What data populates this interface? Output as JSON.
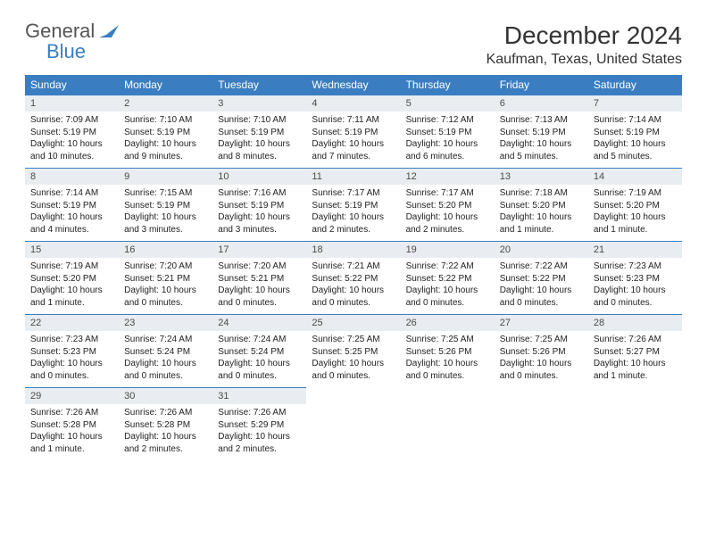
{
  "brand": {
    "general": "General",
    "blue": "Blue"
  },
  "title": "December 2024",
  "location": "Kaufman, Texas, United States",
  "colors": {
    "header_bg": "#3a7ec1",
    "daynum_bg": "#e9edf1",
    "row_divider": "#3a7ec1",
    "text": "#222222",
    "logo_blue": "#3a7ec1",
    "logo_gray": "#555555"
  },
  "fonts": {
    "base": "Arial",
    "title_size": 28,
    "location_size": 16,
    "header_size": 12,
    "daynum_size": 11,
    "body_size": 10
  },
  "weekdays": [
    "Sunday",
    "Monday",
    "Tuesday",
    "Wednesday",
    "Thursday",
    "Friday",
    "Saturday"
  ],
  "days": [
    {
      "n": "1",
      "sr": "Sunrise: 7:09 AM",
      "ss": "Sunset: 5:19 PM",
      "dl1": "Daylight: 10 hours",
      "dl2": "and 10 minutes."
    },
    {
      "n": "2",
      "sr": "Sunrise: 7:10 AM",
      "ss": "Sunset: 5:19 PM",
      "dl1": "Daylight: 10 hours",
      "dl2": "and 9 minutes."
    },
    {
      "n": "3",
      "sr": "Sunrise: 7:10 AM",
      "ss": "Sunset: 5:19 PM",
      "dl1": "Daylight: 10 hours",
      "dl2": "and 8 minutes."
    },
    {
      "n": "4",
      "sr": "Sunrise: 7:11 AM",
      "ss": "Sunset: 5:19 PM",
      "dl1": "Daylight: 10 hours",
      "dl2": "and 7 minutes."
    },
    {
      "n": "5",
      "sr": "Sunrise: 7:12 AM",
      "ss": "Sunset: 5:19 PM",
      "dl1": "Daylight: 10 hours",
      "dl2": "and 6 minutes."
    },
    {
      "n": "6",
      "sr": "Sunrise: 7:13 AM",
      "ss": "Sunset: 5:19 PM",
      "dl1": "Daylight: 10 hours",
      "dl2": "and 5 minutes."
    },
    {
      "n": "7",
      "sr": "Sunrise: 7:14 AM",
      "ss": "Sunset: 5:19 PM",
      "dl1": "Daylight: 10 hours",
      "dl2": "and 5 minutes."
    },
    {
      "n": "8",
      "sr": "Sunrise: 7:14 AM",
      "ss": "Sunset: 5:19 PM",
      "dl1": "Daylight: 10 hours",
      "dl2": "and 4 minutes."
    },
    {
      "n": "9",
      "sr": "Sunrise: 7:15 AM",
      "ss": "Sunset: 5:19 PM",
      "dl1": "Daylight: 10 hours",
      "dl2": "and 3 minutes."
    },
    {
      "n": "10",
      "sr": "Sunrise: 7:16 AM",
      "ss": "Sunset: 5:19 PM",
      "dl1": "Daylight: 10 hours",
      "dl2": "and 3 minutes."
    },
    {
      "n": "11",
      "sr": "Sunrise: 7:17 AM",
      "ss": "Sunset: 5:19 PM",
      "dl1": "Daylight: 10 hours",
      "dl2": "and 2 minutes."
    },
    {
      "n": "12",
      "sr": "Sunrise: 7:17 AM",
      "ss": "Sunset: 5:20 PM",
      "dl1": "Daylight: 10 hours",
      "dl2": "and 2 minutes."
    },
    {
      "n": "13",
      "sr": "Sunrise: 7:18 AM",
      "ss": "Sunset: 5:20 PM",
      "dl1": "Daylight: 10 hours",
      "dl2": "and 1 minute."
    },
    {
      "n": "14",
      "sr": "Sunrise: 7:19 AM",
      "ss": "Sunset: 5:20 PM",
      "dl1": "Daylight: 10 hours",
      "dl2": "and 1 minute."
    },
    {
      "n": "15",
      "sr": "Sunrise: 7:19 AM",
      "ss": "Sunset: 5:20 PM",
      "dl1": "Daylight: 10 hours",
      "dl2": "and 1 minute."
    },
    {
      "n": "16",
      "sr": "Sunrise: 7:20 AM",
      "ss": "Sunset: 5:21 PM",
      "dl1": "Daylight: 10 hours",
      "dl2": "and 0 minutes."
    },
    {
      "n": "17",
      "sr": "Sunrise: 7:20 AM",
      "ss": "Sunset: 5:21 PM",
      "dl1": "Daylight: 10 hours",
      "dl2": "and 0 minutes."
    },
    {
      "n": "18",
      "sr": "Sunrise: 7:21 AM",
      "ss": "Sunset: 5:22 PM",
      "dl1": "Daylight: 10 hours",
      "dl2": "and 0 minutes."
    },
    {
      "n": "19",
      "sr": "Sunrise: 7:22 AM",
      "ss": "Sunset: 5:22 PM",
      "dl1": "Daylight: 10 hours",
      "dl2": "and 0 minutes."
    },
    {
      "n": "20",
      "sr": "Sunrise: 7:22 AM",
      "ss": "Sunset: 5:22 PM",
      "dl1": "Daylight: 10 hours",
      "dl2": "and 0 minutes."
    },
    {
      "n": "21",
      "sr": "Sunrise: 7:23 AM",
      "ss": "Sunset: 5:23 PM",
      "dl1": "Daylight: 10 hours",
      "dl2": "and 0 minutes."
    },
    {
      "n": "22",
      "sr": "Sunrise: 7:23 AM",
      "ss": "Sunset: 5:23 PM",
      "dl1": "Daylight: 10 hours",
      "dl2": "and 0 minutes."
    },
    {
      "n": "23",
      "sr": "Sunrise: 7:24 AM",
      "ss": "Sunset: 5:24 PM",
      "dl1": "Daylight: 10 hours",
      "dl2": "and 0 minutes."
    },
    {
      "n": "24",
      "sr": "Sunrise: 7:24 AM",
      "ss": "Sunset: 5:24 PM",
      "dl1": "Daylight: 10 hours",
      "dl2": "and 0 minutes."
    },
    {
      "n": "25",
      "sr": "Sunrise: 7:25 AM",
      "ss": "Sunset: 5:25 PM",
      "dl1": "Daylight: 10 hours",
      "dl2": "and 0 minutes."
    },
    {
      "n": "26",
      "sr": "Sunrise: 7:25 AM",
      "ss": "Sunset: 5:26 PM",
      "dl1": "Daylight: 10 hours",
      "dl2": "and 0 minutes."
    },
    {
      "n": "27",
      "sr": "Sunrise: 7:25 AM",
      "ss": "Sunset: 5:26 PM",
      "dl1": "Daylight: 10 hours",
      "dl2": "and 0 minutes."
    },
    {
      "n": "28",
      "sr": "Sunrise: 7:26 AM",
      "ss": "Sunset: 5:27 PM",
      "dl1": "Daylight: 10 hours",
      "dl2": "and 1 minute."
    },
    {
      "n": "29",
      "sr": "Sunrise: 7:26 AM",
      "ss": "Sunset: 5:28 PM",
      "dl1": "Daylight: 10 hours",
      "dl2": "and 1 minute."
    },
    {
      "n": "30",
      "sr": "Sunrise: 7:26 AM",
      "ss": "Sunset: 5:28 PM",
      "dl1": "Daylight: 10 hours",
      "dl2": "and 2 minutes."
    },
    {
      "n": "31",
      "sr": "Sunrise: 7:26 AM",
      "ss": "Sunset: 5:29 PM",
      "dl1": "Daylight: 10 hours",
      "dl2": "and 2 minutes."
    }
  ]
}
